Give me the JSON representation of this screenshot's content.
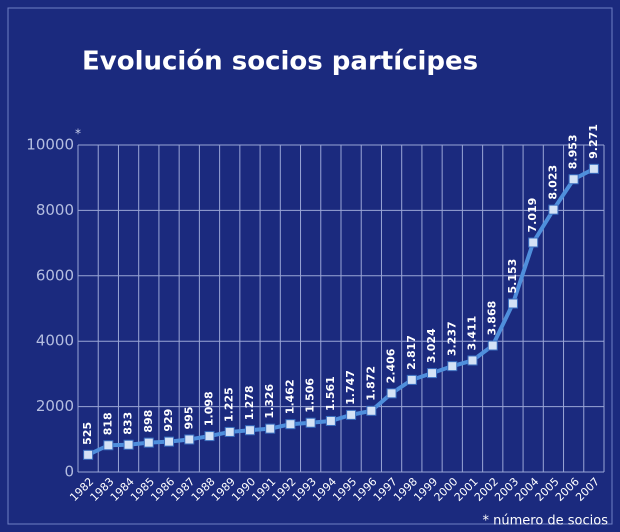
{
  "chart_data": {
    "type": "line",
    "title": "Evolución socios partícipes",
    "axis_note": "*",
    "footnote": "* número de socios",
    "categories": [
      "1982",
      "1983",
      "1984",
      "1985",
      "1986",
      "1987",
      "1988",
      "1989",
      "1990",
      "1991",
      "1992",
      "1993",
      "1994",
      "1995",
      "1996",
      "1997",
      "1998",
      "1999",
      "2000",
      "2001",
      "2002",
      "2003",
      "2004",
      "2005",
      "2006",
      "2007"
    ],
    "values": [
      525,
      818,
      833,
      898,
      929,
      995,
      1098,
      1225,
      1278,
      1326,
      1462,
      1506,
      1561,
      1747,
      1872,
      2406,
      2817,
      3024,
      3237,
      3411,
      3868,
      5153,
      7019,
      8023,
      8953,
      9271
    ],
    "value_labels": [
      "525",
      "818",
      "833",
      "898",
      "929",
      "995",
      "1.098",
      "1.225",
      "1.278",
      "1.326",
      "1.462",
      "1.506",
      "1.561",
      "1.747",
      "1.872",
      "2.406",
      "2.817",
      "3.024",
      "3.237",
      "3.411",
      "3.868",
      "5.153",
      "7.019",
      "8.023",
      "8.953",
      "9.271"
    ],
    "color": "#4f8fdc",
    "ylim": [
      0,
      10000
    ],
    "yticks": [
      0,
      2000,
      4000,
      6000,
      8000,
      10000
    ],
    "grid": true
  }
}
